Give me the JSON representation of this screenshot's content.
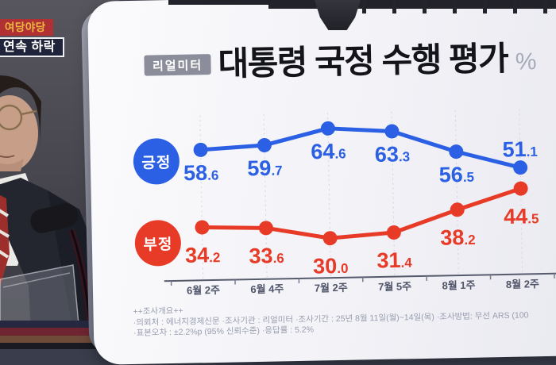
{
  "overlay": {
    "badge_top": {
      "label": "여당야당"
    },
    "badge_bottom": {
      "label": "연속 하락"
    }
  },
  "board": {
    "source_badge": "리얼미터",
    "title": "대통령 국정 수행 평가",
    "title_unit": "%",
    "footer": {
      "heading": "++조사개요++",
      "line1": "·의뢰처 : 에너지경제신문  ·조사기관 : 리얼미터  ·조사기간 : 25년 8월 11일(월)~14일(목)  ·조사방법: 무선 ARS (100",
      "line2": "·표본오차 : ±2.2%p (95% 신뢰수준)  ·응답률 : 5.2%"
    }
  },
  "chart_data": {
    "type": "line",
    "title": "대통령 국정 수행 평가",
    "unit": "%",
    "categories": [
      "6월 2주",
      "6월 4주",
      "7월 2주",
      "7월 5주",
      "8월 1주",
      "8월 2주"
    ],
    "series": [
      {
        "name": "긍정",
        "color": "#2b60e4",
        "values": [
          58.6,
          59.7,
          64.6,
          63.3,
          56.5,
          51.1
        ],
        "label_placement": [
          "below",
          "below",
          "below",
          "below",
          "below",
          "above"
        ]
      },
      {
        "name": "부정",
        "color": "#e73b27",
        "values": [
          34.2,
          33.6,
          30.0,
          31.4,
          38.2,
          44.5
        ],
        "label_placement": [
          "below",
          "below",
          "below",
          "below",
          "below",
          "below"
        ]
      }
    ],
    "ylim": [
      25,
      70
    ],
    "grid": "vertical-dashed",
    "legend_position": "left"
  }
}
